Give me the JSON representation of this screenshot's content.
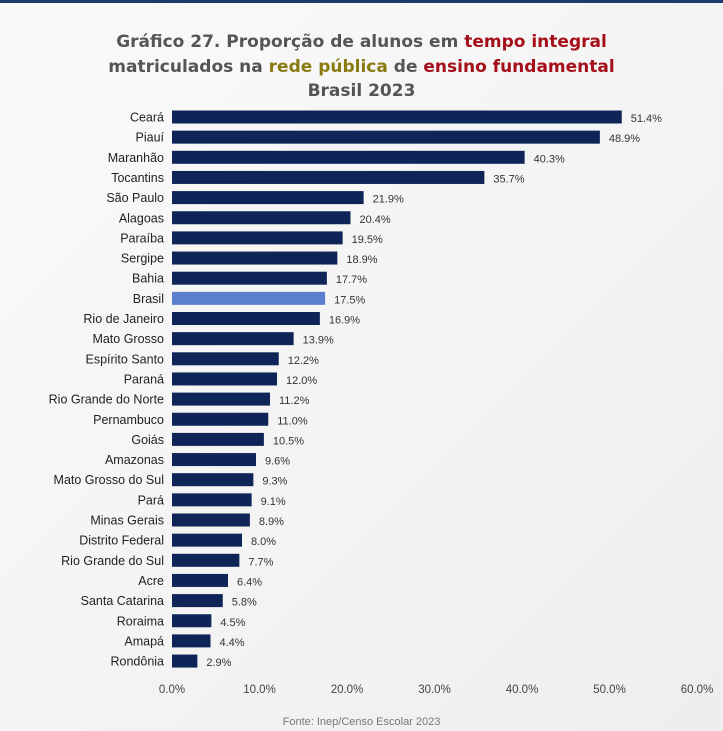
{
  "title": {
    "line1_prefix": "Gráfico 27. Proporção de alunos em ",
    "line1_highlight": "tempo integral",
    "line2_prefix": "matriculados na ",
    "line2_highlight1": "rede pública",
    "line2_mid": " de ",
    "line2_highlight2": "ensino fundamental",
    "line3": "Brasil 2023"
  },
  "source": "Fonte: Inep/Censo Escolar 2023",
  "colors": {
    "bar": "#0f2557",
    "highlight_bar": "#5b7fcc",
    "title_red": "#a50f1a",
    "title_gold": "#8a7a12"
  },
  "chart_data": {
    "type": "bar",
    "orientation": "horizontal",
    "categories": [
      "Ceará",
      "Piauí",
      "Maranhão",
      "Tocantins",
      "São Paulo",
      "Alagoas",
      "Paraíba",
      "Sergipe",
      "Bahia",
      "Brasil",
      "Rio de Janeiro",
      "Mato Grosso",
      "Espírito Santo",
      "Paraná",
      "Rio Grande do Norte",
      "Pernambuco",
      "Goiás",
      "Amazonas",
      "Mato Grosso do Sul",
      "Pará",
      "Minas Gerais",
      "Distrito Federal",
      "Rio Grande do Sul",
      "Acre",
      "Santa Catarina",
      "Roraima",
      "Amapá",
      "Rondônia"
    ],
    "values": [
      51.4,
      48.9,
      40.3,
      35.7,
      21.9,
      20.4,
      19.5,
      18.9,
      17.7,
      17.5,
      16.9,
      13.9,
      12.2,
      12.0,
      11.2,
      11.0,
      10.5,
      9.6,
      9.3,
      9.1,
      8.9,
      8.0,
      7.7,
      6.4,
      5.8,
      4.5,
      4.4,
      2.9
    ],
    "data_labels": [
      "51.4%",
      "48.9%",
      "40.3%",
      "35.7%",
      "21.9%",
      "20.4%",
      "19.5%",
      "18.9%",
      "17.7%",
      "17.5%",
      "16.9%",
      "13.9%",
      "12.2%",
      "12.0%",
      "11.2%",
      "11.0%",
      "10.5%",
      "9.6%",
      "9.3%",
      "9.1%",
      "8.9%",
      "8.0%",
      "7.7%",
      "6.4%",
      "5.8%",
      "4.5%",
      "4.4%",
      "2.9%"
    ],
    "highlighted_category": "Brasil",
    "xlim": [
      0,
      60
    ],
    "xticks": [
      0,
      10,
      20,
      30,
      40,
      50,
      60
    ],
    "xtick_labels": [
      "0.0%",
      "10.0%",
      "20.0%",
      "30.0%",
      "40.0%",
      "50.0%",
      "60.0%"
    ],
    "grid": false,
    "legend": "none"
  }
}
